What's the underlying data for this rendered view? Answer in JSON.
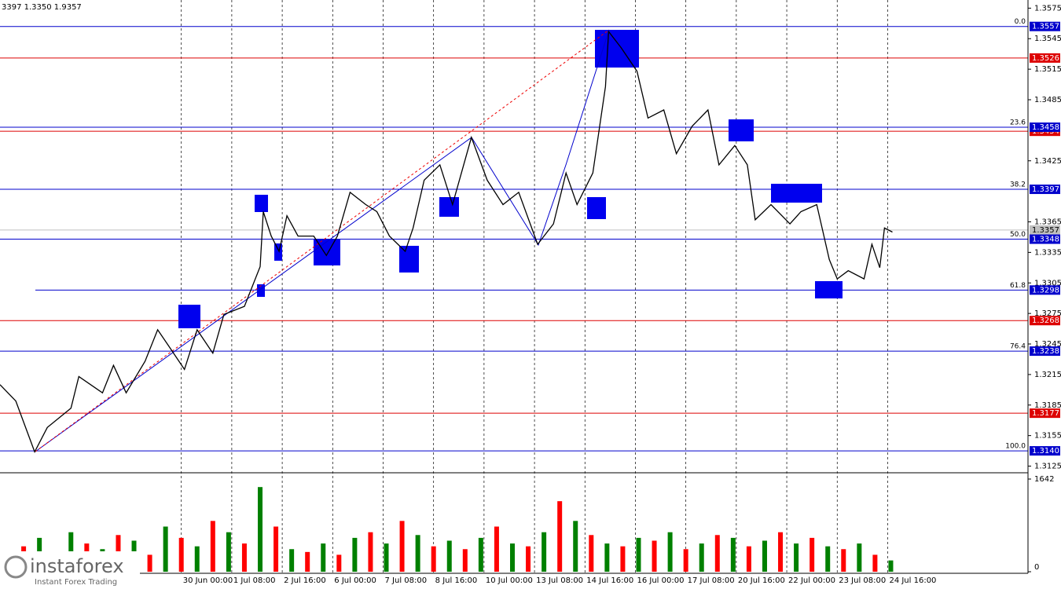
{
  "chart_data": {
    "type": "line",
    "header": "3397 1.3350 1.9357",
    "xlim": [
      0,
      652
    ],
    "xticks": [
      {
        "value": 115,
        "label": "30 Jun 00:00"
      },
      {
        "value": 147,
        "label": "1 Jul 08:00"
      },
      {
        "value": 179,
        "label": "2 Jul 16:00"
      },
      {
        "value": 211,
        "label": "6 Jul 00:00"
      },
      {
        "value": 243,
        "label": "7 Jul 08:00"
      },
      {
        "value": 275,
        "label": "8 Jul 16:00"
      },
      {
        "value": 307,
        "label": "10 Jul 00:00"
      },
      {
        "value": 339,
        "label": "13 Jul 08:00"
      },
      {
        "value": 371,
        "label": "14 Jul 16:00"
      },
      {
        "value": 403,
        "label": "16 Jul 00:00"
      },
      {
        "value": 435,
        "label": "17 Jul 08:00"
      },
      {
        "value": 467,
        "label": "20 Jul 16:00"
      },
      {
        "value": 499,
        "label": "22 Jul 00:00"
      },
      {
        "value": 531,
        "label": "23 Jul 08:00"
      },
      {
        "value": 563,
        "label": "24 Jul 16:00"
      }
    ],
    "ylim": [
      1.312,
      1.3583
    ],
    "yticks": [
      1.3125,
      1.3155,
      1.3185,
      1.3215,
      1.3245,
      1.3275,
      1.3305,
      1.3335,
      1.3365,
      1.3425,
      1.3485,
      1.3515,
      1.3545,
      1.3575
    ],
    "price": {
      "color": "#000000",
      "x": [
        0,
        10,
        22,
        30,
        45,
        50,
        65,
        72,
        80,
        92,
        100,
        107,
        117,
        125,
        135,
        142,
        155,
        165,
        167,
        172,
        177,
        182,
        189,
        199,
        207,
        214,
        222,
        232,
        239,
        247,
        257,
        262,
        269,
        279,
        287,
        299,
        309,
        319,
        329,
        341,
        351,
        359,
        366,
        376,
        384,
        386,
        394,
        404,
        411,
        421,
        429,
        439,
        449,
        456,
        466,
        474,
        479,
        489,
        501,
        508,
        518,
        526,
        531,
        538,
        548,
        553,
        558,
        561,
        566
      ],
      "values": [
        1.3205,
        1.3189,
        1.3139,
        1.3163,
        1.3182,
        1.3213,
        1.3197,
        1.3224,
        1.3197,
        1.3228,
        1.3259,
        1.3243,
        1.322,
        1.3259,
        1.3236,
        1.3274,
        1.3282,
        1.3321,
        1.3375,
        1.3351,
        1.3336,
        1.3371,
        1.3351,
        1.3351,
        1.3332,
        1.3351,
        1.3394,
        1.3382,
        1.3375,
        1.3351,
        1.3336,
        1.3359,
        1.3406,
        1.3421,
        1.3382,
        1.3448,
        1.3406,
        1.3382,
        1.3394,
        1.3343,
        1.3363,
        1.3413,
        1.3382,
        1.3413,
        1.3498,
        1.3552,
        1.3536,
        1.3513,
        1.3467,
        1.3475,
        1.3432,
        1.3459,
        1.3475,
        1.3421,
        1.344,
        1.3421,
        1.3367,
        1.3382,
        1.3363,
        1.3375,
        1.3382,
        1.3328,
        1.3309,
        1.3317,
        1.3309,
        1.3343,
        1.332,
        1.3359,
        1.3355
      ]
    },
    "levels": [
      {
        "price": 1.3557,
        "color": "#0000cc",
        "fib": "0.0"
      },
      {
        "price": 1.3526,
        "color": "#dd0000"
      },
      {
        "price": 1.3454,
        "color": "#dd0000"
      },
      {
        "price": 1.3458,
        "color": "#0000cc",
        "fib": "23.6"
      },
      {
        "price": 1.3397,
        "color": "#0000cc",
        "fib": "38.2"
      },
      {
        "price": 1.3357,
        "color": "#c0c0c0"
      },
      {
        "price": 1.3348,
        "color": "#0000cc",
        "fib": "50.0"
      },
      {
        "price": 1.3298,
        "color": "#0000cc",
        "fib": "61.8"
      },
      {
        "price": 1.3268,
        "color": "#dd0000"
      },
      {
        "price": 1.3238,
        "color": "#0000cc",
        "fib": "76.4"
      },
      {
        "price": 1.3177,
        "color": "#dd0000"
      },
      {
        "price": {
          "value": 1.314,
          "label": "1.3140"
        },
        "color": "#0000cc",
        "fib": "100.0"
      }
    ],
    "volume": {
      "type": "bar",
      "ylim": [
        0,
        1642
      ],
      "yticks": [
        0,
        1642
      ],
      "series": [
        {
          "color": "#008000",
          "x": [
            5,
            25,
            45,
            65,
            85,
            105,
            125,
            145,
            165,
            185,
            205,
            225,
            245,
            265,
            285,
            305,
            325,
            345,
            365,
            385,
            405,
            425,
            445,
            465,
            485,
            505,
            525,
            545,
            565
          ],
          "values": [
            300,
            600,
            700,
            400,
            550,
            800,
            450,
            700,
            1500,
            400,
            500,
            600,
            500,
            650,
            550,
            600,
            500,
            700,
            900,
            500,
            600,
            700,
            500,
            600,
            550,
            500,
            450,
            500,
            200
          ]
        },
        {
          "color": "#ff0000",
          "x": [
            15,
            35,
            55,
            75,
            95,
            115,
            135,
            155,
            175,
            195,
            215,
            235,
            255,
            275,
            295,
            315,
            335,
            355,
            375,
            395,
            415,
            435,
            455,
            475,
            495,
            515,
            535,
            555
          ],
          "values": [
            450,
            350,
            500,
            650,
            300,
            600,
            900,
            500,
            800,
            350,
            300,
            700,
            900,
            450,
            400,
            800,
            450,
            1250,
            650,
            450,
            550,
            400,
            650,
            450,
            700,
            600,
            400,
            300
          ]
        }
      ]
    }
  },
  "watermark": {
    "brand": "instaforex",
    "tagline": "Instant Forex Trading"
  }
}
